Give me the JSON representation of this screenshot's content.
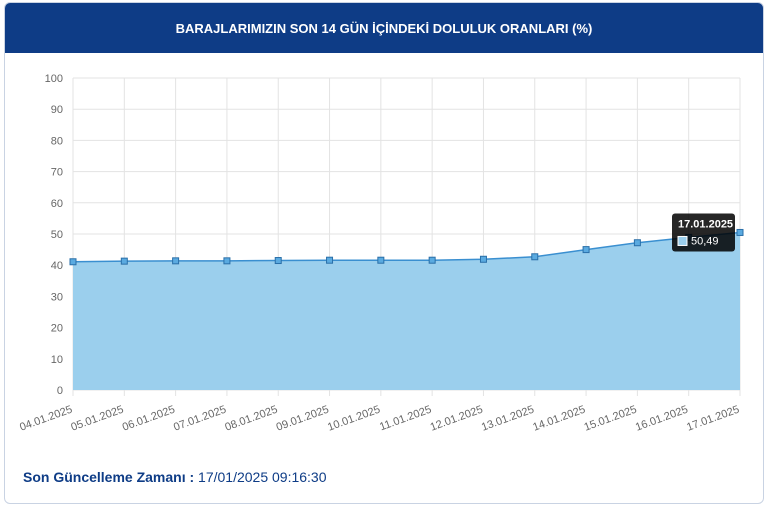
{
  "header": {
    "title": "BARAJLARIMIZIN SON 14 GÜN İÇİNDEKİ DOLULUK ORANLARI (%)"
  },
  "chart_data": {
    "type": "area",
    "categories": [
      "04.01.2025",
      "05.01.2025",
      "06.01.2025",
      "07.01.2025",
      "08.01.2025",
      "09.01.2025",
      "10.01.2025",
      "11.01.2025",
      "12.01.2025",
      "13.01.2025",
      "14.01.2025",
      "15.01.2025",
      "16.01.2025",
      "17.01.2025"
    ],
    "values": [
      41.1,
      41.3,
      41.4,
      41.4,
      41.5,
      41.6,
      41.6,
      41.6,
      41.9,
      42.7,
      45.0,
      47.2,
      48.9,
      50.49
    ],
    "value_labels": [
      null,
      null,
      null,
      null,
      null,
      null,
      null,
      null,
      null,
      null,
      null,
      null,
      null,
      "50,49"
    ],
    "color": "#3a8fd0",
    "fill_color": "#9bcfed",
    "ylim": [
      0,
      100
    ],
    "yticks": [
      0,
      10,
      20,
      30,
      40,
      50,
      60,
      70,
      80,
      90,
      100
    ],
    "grid": true
  },
  "footer": {
    "label": "Son Güncelleme Zamanı :",
    "value": "17/01/2025 09:16:30"
  }
}
